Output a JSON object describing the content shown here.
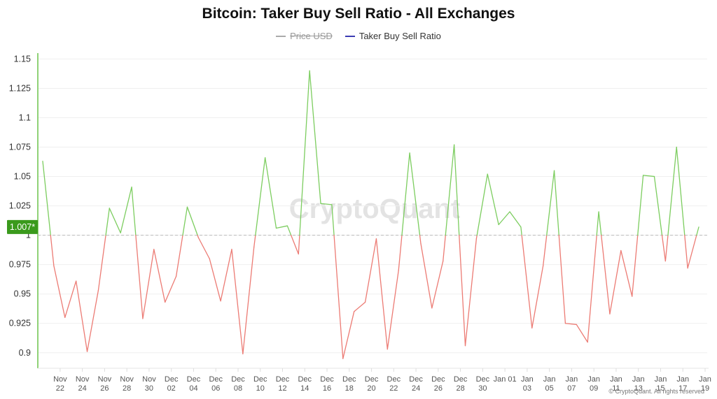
{
  "title": "Bitcoin: Taker Buy Sell Ratio - All Exchanges",
  "legend": [
    {
      "name": "Price USD",
      "color": "#aaaaaa",
      "hidden": true
    },
    {
      "name": "Taker Buy Sell Ratio",
      "color": "#3b3bb3",
      "hidden": false
    }
  ],
  "watermark": "CryptoQuant",
  "copyright": "© CryptoQuant. All rights reserved",
  "current_badge": {
    "label": "1.007*",
    "value": 1.007,
    "color": "#3a9a1c"
  },
  "colors": {
    "above": "#7ccd5f",
    "below": "#ec7b74",
    "reference": "#bbbbbb",
    "axis": "#6cc34a"
  },
  "chart_data": {
    "type": "line",
    "title": "Bitcoin: Taker Buy Sell Ratio - All Exchanges",
    "series": [
      {
        "name": "Taker Buy Sell Ratio",
        "values": [
          1.063,
          0.974,
          0.93,
          0.961,
          0.901,
          0.953,
          1.023,
          1.002,
          1.041,
          0.929,
          0.988,
          0.943,
          0.965,
          1.024,
          0.998,
          0.98,
          0.944,
          0.988,
          0.899,
          0.99,
          1.066,
          1.006,
          1.008,
          0.984,
          1.14,
          1.027,
          1.026,
          0.895,
          0.935,
          0.943,
          0.997,
          0.903,
          0.97,
          1.07,
          0.993,
          0.938,
          0.978,
          1.077,
          0.906,
          0.997,
          1.052,
          1.009,
          1.02,
          1.007,
          0.921,
          0.974,
          1.055,
          0.925,
          0.924,
          0.909,
          1.02,
          0.933,
          0.987,
          0.948,
          1.051,
          1.05,
          0.978,
          1.075,
          0.972,
          1.007
        ]
      }
    ],
    "x_start": "Nov 21",
    "x_end": "Jan 19",
    "x_labels": [
      {
        "line1": "Nov",
        "line2": "22",
        "index": 1
      },
      {
        "line1": "Nov",
        "line2": "24",
        "index": 3
      },
      {
        "line1": "Nov",
        "line2": "26",
        "index": 5
      },
      {
        "line1": "Nov",
        "line2": "28",
        "index": 7
      },
      {
        "line1": "Nov",
        "line2": "30",
        "index": 9
      },
      {
        "line1": "Dec",
        "line2": "02",
        "index": 11
      },
      {
        "line1": "Dec",
        "line2": "04",
        "index": 13
      },
      {
        "line1": "Dec",
        "line2": "06",
        "index": 15
      },
      {
        "line1": "Dec",
        "line2": "08",
        "index": 17
      },
      {
        "line1": "Dec",
        "line2": "10",
        "index": 19
      },
      {
        "line1": "Dec",
        "line2": "12",
        "index": 21
      },
      {
        "line1": "Dec",
        "line2": "14",
        "index": 23
      },
      {
        "line1": "Dec",
        "line2": "16",
        "index": 25
      },
      {
        "line1": "Dec",
        "line2": "18",
        "index": 27
      },
      {
        "line1": "Dec",
        "line2": "20",
        "index": 29
      },
      {
        "line1": "Dec",
        "line2": "22",
        "index": 31
      },
      {
        "line1": "Dec",
        "line2": "24",
        "index": 33
      },
      {
        "line1": "Dec",
        "line2": "26",
        "index": 35
      },
      {
        "line1": "Dec",
        "line2": "28",
        "index": 37
      },
      {
        "line1": "Dec",
        "line2": "30",
        "index": 39
      },
      {
        "line1": "Jan 01",
        "line2": "",
        "index": 41
      },
      {
        "line1": "Jan",
        "line2": "03",
        "index": 43
      },
      {
        "line1": "Jan",
        "line2": "05",
        "index": 45
      },
      {
        "line1": "Jan",
        "line2": "07",
        "index": 47
      },
      {
        "line1": "Jan",
        "line2": "09",
        "index": 49
      },
      {
        "line1": "Jan",
        "line2": "11",
        "index": 51
      },
      {
        "line1": "Jan",
        "line2": "13",
        "index": 53
      },
      {
        "line1": "Jan",
        "line2": "15",
        "index": 55
      },
      {
        "line1": "Jan",
        "line2": "17",
        "index": 57
      },
      {
        "line1": "Jan",
        "line2": "19",
        "index": 59
      }
    ],
    "y_ticks": [
      "0.9",
      "0.925",
      "0.95",
      "0.975",
      "1",
      "1.025",
      "1.05",
      "1.075",
      "1.1",
      "1.125",
      "1.15"
    ],
    "ylim": [
      0.885,
      1.155
    ],
    "reference_line": 1,
    "grid": true,
    "legend_position": "top-center"
  }
}
